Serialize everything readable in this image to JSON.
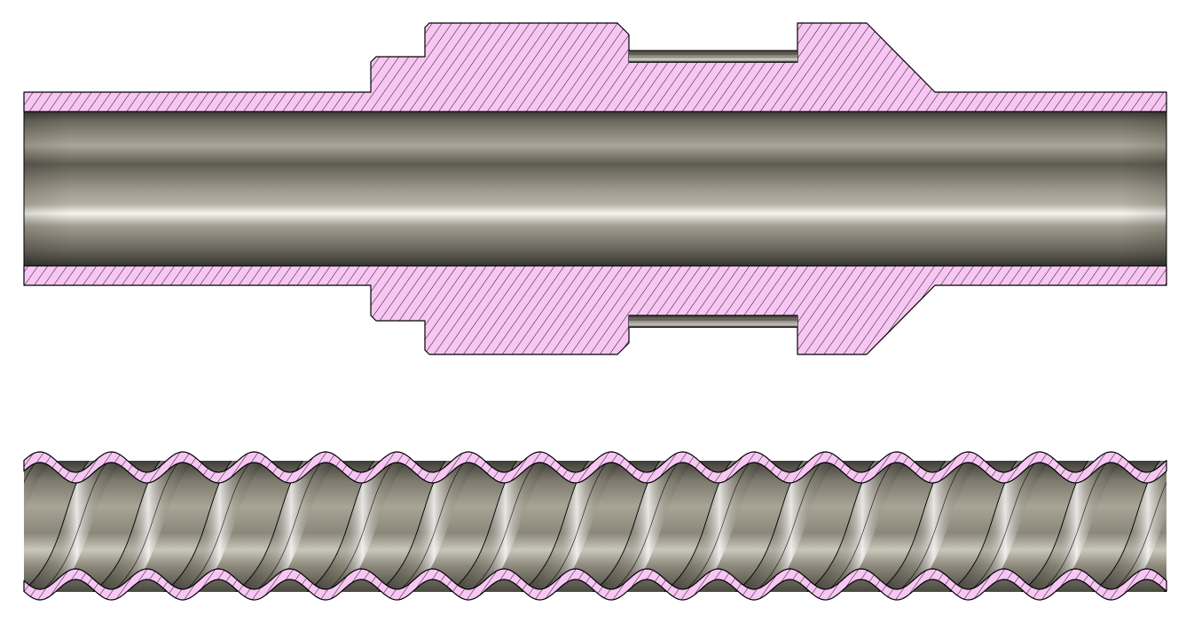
{
  "figure": {
    "views": [
      {
        "name": "straight-tube-fitting-section",
        "parts": [
          "fitting-body",
          "smooth-bore-tube"
        ]
      },
      {
        "name": "corrugated-tube-section",
        "parts": [
          "corrugated-wall",
          "helical-corrugated-core"
        ]
      }
    ],
    "colors": {
      "section_fill": "#f7c6f3",
      "hatch": "#000000",
      "outline": "#000000",
      "metal_dark": "#55534a",
      "metal_mid": "#9a968a",
      "metal_light": "#f4f3ee",
      "background": "#ffffff"
    }
  }
}
